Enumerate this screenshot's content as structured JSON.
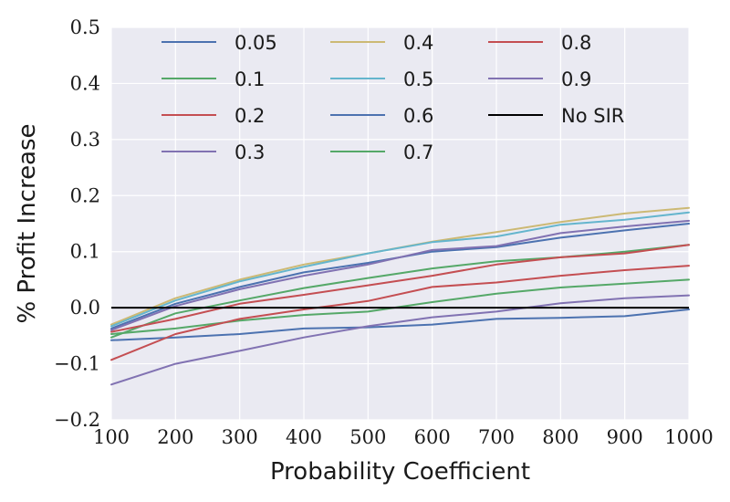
{
  "chart_data": {
    "type": "line",
    "title": "",
    "xlabel": "Probability Coefficient",
    "ylabel": "% Profit Increase",
    "xlim": [
      100,
      1000
    ],
    "ylim": [
      -0.2,
      0.5
    ],
    "x": [
      100,
      200,
      300,
      400,
      500,
      600,
      700,
      800,
      900,
      1000
    ],
    "xticks": [
      100,
      200,
      300,
      400,
      500,
      600,
      700,
      800,
      900,
      1000
    ],
    "xtick_labels": [
      "100",
      "200",
      "300",
      "400",
      "500",
      "600",
      "700",
      "800",
      "900",
      "1000"
    ],
    "yticks": [
      -0.2,
      -0.1,
      0.0,
      0.1,
      0.2,
      0.3,
      0.4,
      0.5
    ],
    "ytick_labels": [
      "−0.2",
      "−0.1",
      "0.0",
      "0.1",
      "0.2",
      "0.3",
      "0.4",
      "0.5"
    ],
    "grid": true,
    "legend_placement": "top",
    "series": [
      {
        "name": "0.05",
        "color": "#4c72b0",
        "values": [
          -0.058,
          -0.053,
          -0.047,
          -0.037,
          -0.035,
          -0.03,
          -0.02,
          -0.018,
          -0.015,
          -0.003
        ]
      },
      {
        "name": "0.1",
        "color": "#55a868",
        "values": [
          -0.047,
          -0.037,
          -0.023,
          -0.013,
          -0.007,
          0.01,
          0.025,
          0.036,
          0.043,
          0.05
        ]
      },
      {
        "name": "0.2",
        "color": "#c44e52",
        "values": [
          -0.093,
          -0.047,
          -0.02,
          -0.003,
          0.012,
          0.037,
          0.045,
          0.057,
          0.067,
          0.075
        ]
      },
      {
        "name": "0.3",
        "color": "#8172b2",
        "values": [
          -0.137,
          -0.1,
          -0.077,
          -0.053,
          -0.033,
          -0.017,
          -0.007,
          0.008,
          0.017,
          0.022
        ]
      },
      {
        "name": "0.4",
        "color": "#ccb974",
        "values": [
          -0.03,
          0.017,
          0.05,
          0.077,
          0.097,
          0.118,
          0.135,
          0.153,
          0.168,
          0.178
        ]
      },
      {
        "name": "0.5",
        "color": "#64b5cd",
        "values": [
          -0.033,
          0.013,
          0.047,
          0.073,
          0.097,
          0.117,
          0.127,
          0.148,
          0.157,
          0.17
        ]
      },
      {
        "name": "0.6",
        "color": "#4c72b0",
        "values": [
          -0.037,
          0.007,
          0.037,
          0.063,
          0.08,
          0.1,
          0.108,
          0.125,
          0.138,
          0.15
        ]
      },
      {
        "name": "0.7",
        "color": "#55a868",
        "values": [
          -0.053,
          -0.01,
          0.013,
          0.035,
          0.053,
          0.07,
          0.083,
          0.09,
          0.1,
          0.112
        ]
      },
      {
        "name": "0.8",
        "color": "#c44e52",
        "values": [
          -0.043,
          -0.02,
          0.007,
          0.023,
          0.04,
          0.057,
          0.077,
          0.09,
          0.097,
          0.112
        ]
      },
      {
        "name": "0.9",
        "color": "#8172b2",
        "values": [
          -0.04,
          0.003,
          0.033,
          0.057,
          0.077,
          0.103,
          0.11,
          0.133,
          0.145,
          0.155
        ]
      }
    ],
    "reference_line": {
      "name": "No SIR",
      "color": "#000000",
      "y": 0.0
    }
  }
}
